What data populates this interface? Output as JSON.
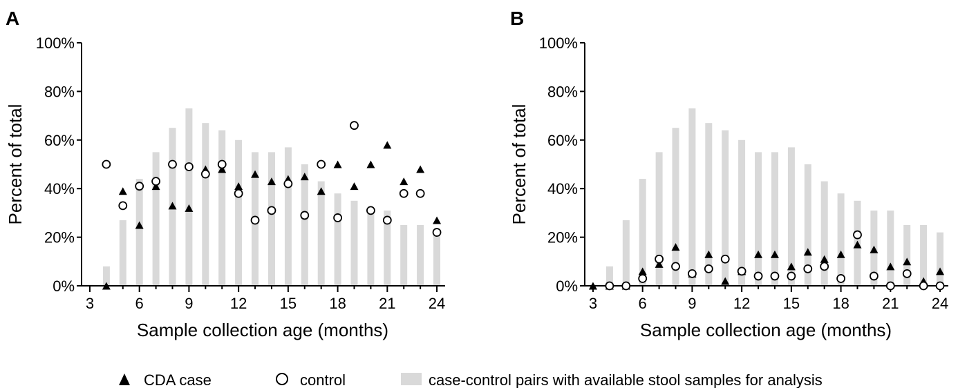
{
  "colors": {
    "bar": "#d9d9d9",
    "marker": "#000000",
    "axis": "#000000",
    "background": "#ffffff"
  },
  "legend": {
    "case_label": "CDA case",
    "control_label": "control",
    "bar_label": "case-control pairs with available stool samples for analysis"
  },
  "chart_data": [
    {
      "panel": "A",
      "type": "bar",
      "xlabel": "Sample collection age (months)",
      "ylabel": "Percent of total",
      "x": [
        3,
        4,
        5,
        6,
        7,
        8,
        9,
        10,
        11,
        12,
        13,
        14,
        15,
        16,
        17,
        18,
        19,
        20,
        21,
        22,
        23,
        24
      ],
      "xticks": [
        "3",
        "6",
        "9",
        "12",
        "15",
        "18",
        "21",
        "24"
      ],
      "xtick_values": [
        3,
        6,
        9,
        12,
        15,
        18,
        21,
        24
      ],
      "yticks": [
        "0%",
        "20%",
        "40%",
        "60%",
        "80%",
        "100%"
      ],
      "ytick_values": [
        0,
        20,
        40,
        60,
        80,
        100
      ],
      "xlim": [
        2.5,
        24.5
      ],
      "ylim": [
        0,
        100
      ],
      "series": [
        {
          "name": "case-control pairs with available stool samples for analysis",
          "kind": "bar",
          "values": [
            0.5,
            8,
            27,
            44,
            55,
            65,
            73,
            67,
            64,
            60,
            55,
            55,
            57,
            50,
            43,
            38,
            35,
            31,
            31,
            25,
            25,
            22
          ]
        },
        {
          "name": "CDA case",
          "kind": "triangle",
          "values": [
            null,
            0,
            39,
            25,
            41,
            33,
            32,
            48,
            48,
            41,
            46,
            43,
            44,
            45,
            39,
            50,
            41,
            50,
            58,
            43,
            48,
            27
          ]
        },
        {
          "name": "control",
          "kind": "circle",
          "values": [
            null,
            50,
            33,
            41,
            43,
            50,
            49,
            46,
            50,
            38,
            27,
            31,
            42,
            29,
            50,
            28,
            66,
            31,
            27,
            38,
            38,
            22
          ]
        }
      ]
    },
    {
      "panel": "B",
      "type": "bar",
      "xlabel": "Sample collection age (months)",
      "ylabel": "Percent of total",
      "x": [
        3,
        4,
        5,
        6,
        7,
        8,
        9,
        10,
        11,
        12,
        13,
        14,
        15,
        16,
        17,
        18,
        19,
        20,
        21,
        22,
        23,
        24
      ],
      "xticks": [
        "3",
        "6",
        "9",
        "12",
        "15",
        "18",
        "21",
        "24"
      ],
      "xtick_values": [
        3,
        6,
        9,
        12,
        15,
        18,
        21,
        24
      ],
      "yticks": [
        "0%",
        "20%",
        "40%",
        "60%",
        "80%",
        "100%"
      ],
      "ytick_values": [
        0,
        20,
        40,
        60,
        80,
        100
      ],
      "xlim": [
        2.5,
        24.5
      ],
      "ylim": [
        0,
        100
      ],
      "series": [
        {
          "name": "case-control pairs with available stool samples for analysis",
          "kind": "bar",
          "values": [
            0.5,
            8,
            27,
            44,
            55,
            65,
            73,
            67,
            64,
            60,
            55,
            55,
            57,
            50,
            43,
            38,
            35,
            31,
            31,
            25,
            25,
            22
          ]
        },
        {
          "name": "CDA case",
          "kind": "triangle",
          "values": [
            0,
            0,
            0,
            6,
            9,
            16,
            5,
            13,
            2,
            6,
            13,
            13,
            8,
            14,
            11,
            13,
            17,
            15,
            8,
            10,
            2,
            6
          ]
        },
        {
          "name": "control",
          "kind": "circle",
          "values": [
            null,
            0,
            0,
            3,
            11,
            8,
            5,
            7,
            11,
            6,
            4,
            4,
            4,
            7,
            8,
            3,
            21,
            4,
            0,
            5,
            0,
            0
          ]
        }
      ]
    }
  ]
}
